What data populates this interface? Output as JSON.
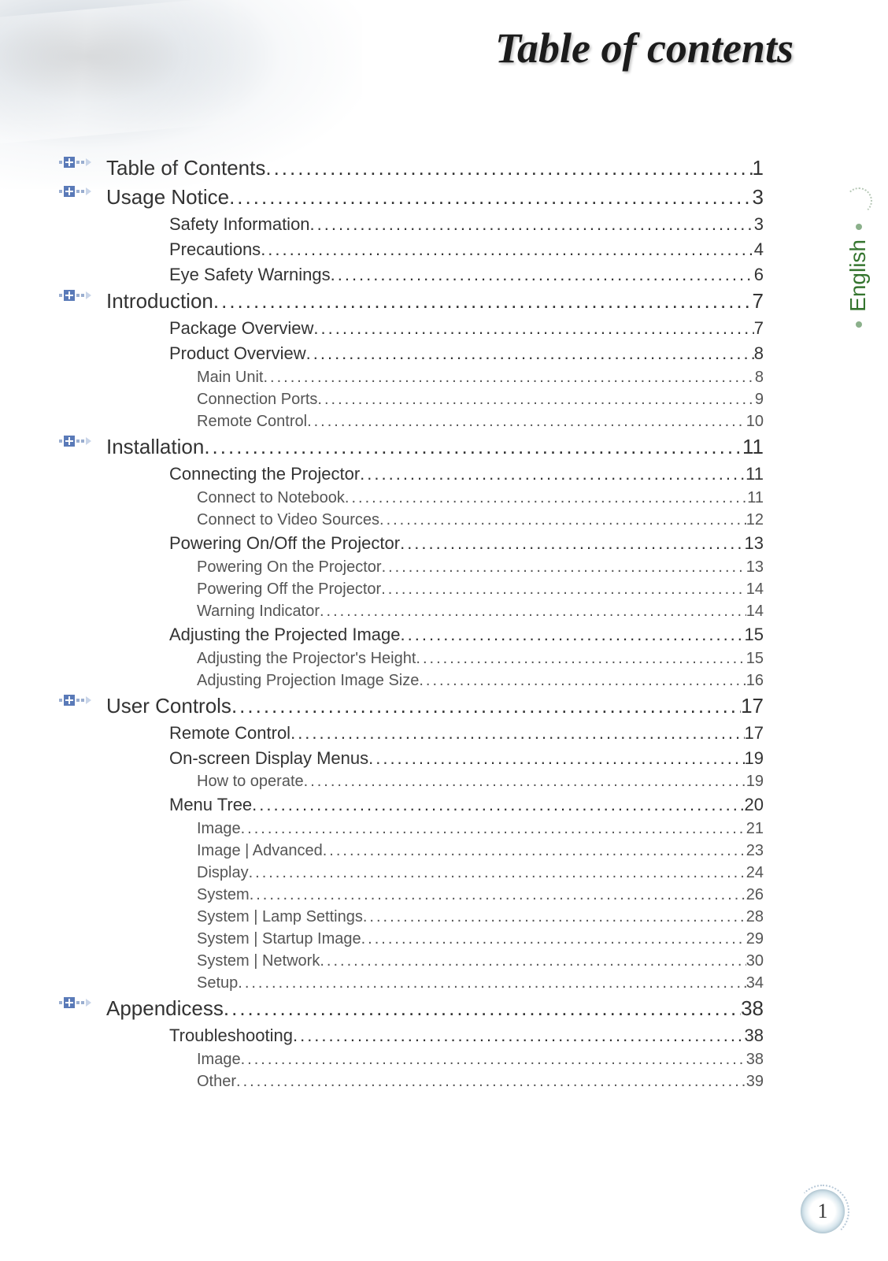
{
  "header": {
    "title": "Table of contents"
  },
  "side": {
    "language": "English"
  },
  "footer": {
    "page_number": "1"
  },
  "colors": {
    "level1_text": "#333333",
    "level2_text": "#333333",
    "level3_text": "#555555",
    "language_text": "#35752f",
    "bullet_blue": "#5a7ab8"
  },
  "typography": {
    "header_fontsize_pt": 40,
    "header_font": "Georgia italic bold",
    "level1_fontsize_pt": 19,
    "level2_fontsize_pt": 16,
    "level3_fontsize_pt": 15
  },
  "toc": [
    {
      "level": 1,
      "label": "Table of Contents",
      "page": "1"
    },
    {
      "level": 1,
      "label": "Usage Notice",
      "page": "3"
    },
    {
      "level": 2,
      "label": "Safety Information",
      "page": "3"
    },
    {
      "level": 2,
      "label": "Precautions",
      "page": "4"
    },
    {
      "level": 2,
      "label": "Eye Safety Warnings",
      "page": "6"
    },
    {
      "level": 1,
      "label": "Introduction",
      "page": "7"
    },
    {
      "level": 2,
      "label": "Package Overview",
      "page": "7"
    },
    {
      "level": 2,
      "label": "Product Overview",
      "page": "8"
    },
    {
      "level": 3,
      "label": "Main Unit",
      "page": "8"
    },
    {
      "level": 3,
      "label": "Connection Ports",
      "page": "9"
    },
    {
      "level": 3,
      "label": "Remote Control",
      "page": "10"
    },
    {
      "level": 1,
      "label": "Installation",
      "page": "11"
    },
    {
      "level": 2,
      "label": "Connecting the Projector",
      "page": "11"
    },
    {
      "level": 3,
      "label": "Connect to Notebook",
      "page": "11"
    },
    {
      "level": 3,
      "label": "Connect to Video Sources",
      "page": "12"
    },
    {
      "level": 2,
      "label": "Powering On/Off the Projector",
      "page": "13"
    },
    {
      "level": 3,
      "label": "Powering On the Projector",
      "page": "13"
    },
    {
      "level": 3,
      "label": "Powering Off the Projector",
      "page": "14"
    },
    {
      "level": 3,
      "label": "Warning Indicator",
      "page": "14"
    },
    {
      "level": 2,
      "label": "Adjusting the Projected Image",
      "page": "15"
    },
    {
      "level": 3,
      "label": "Adjusting the Projector's Height",
      "page": "15"
    },
    {
      "level": 3,
      "label": "Adjusting Projection Image Size",
      "page": "16"
    },
    {
      "level": 1,
      "label": "User Controls",
      "page": "17"
    },
    {
      "level": 2,
      "label": "Remote Control",
      "page": "17"
    },
    {
      "level": 2,
      "label": "On-screen Display Menus",
      "page": "19"
    },
    {
      "level": 3,
      "label": "How to operate",
      "page": "19"
    },
    {
      "level": 2,
      "label": "Menu Tree",
      "page": "20"
    },
    {
      "level": 3,
      "label": "Image",
      "page": "21"
    },
    {
      "level": 3,
      "label": "Image | Advanced",
      "page": "23"
    },
    {
      "level": 3,
      "label": "Display",
      "page": "24"
    },
    {
      "level": 3,
      "label": "System",
      "page": "26"
    },
    {
      "level": 3,
      "label": "System | Lamp Settings",
      "page": "28"
    },
    {
      "level": 3,
      "label": "System | Startup Image",
      "page": "29"
    },
    {
      "level": 3,
      "label": "System | Network",
      "page": "30"
    },
    {
      "level": 3,
      "label": "Setup",
      "page": "34"
    },
    {
      "level": 1,
      "label": "Appendicess",
      "page": "38"
    },
    {
      "level": 2,
      "label": "Troubleshooting",
      "page": "38"
    },
    {
      "level": 3,
      "label": "Image",
      "page": "38"
    },
    {
      "level": 3,
      "label": "Other",
      "page": "39"
    }
  ]
}
